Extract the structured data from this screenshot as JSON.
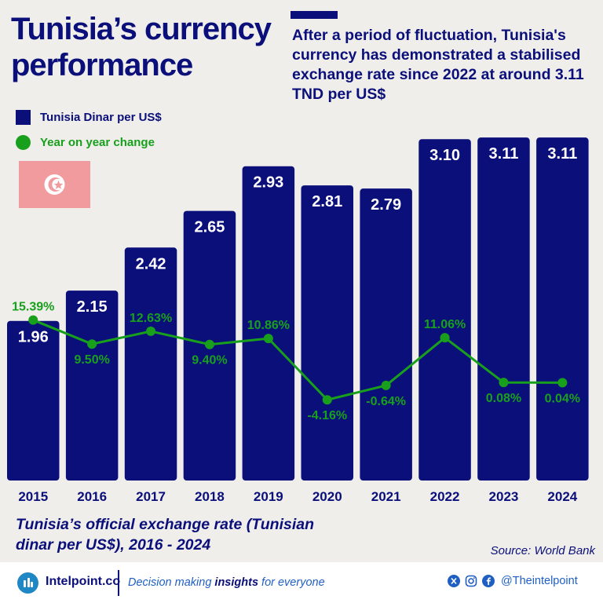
{
  "header": {
    "title": "Tunisia’s currency performance",
    "subtitle": "After a period of fluctuation, Tunisia's currency has demonstrated a stabilised exchange rate since 2022 at around 3.11 TND per US$"
  },
  "legend": {
    "bars_label": "Tunisia Dinar per US$",
    "yoy_label": "Year on year change"
  },
  "colors": {
    "bar": "#0b0f7a",
    "yoy": "#18a01d",
    "background": "#efeeea",
    "flag": "#f19b9e"
  },
  "chart_data": {
    "type": "bar",
    "categories": [
      "2015",
      "2016",
      "2017",
      "2018",
      "2019",
      "2020",
      "2021",
      "2022",
      "2023",
      "2024"
    ],
    "series": [
      {
        "name": "Tunisia Dinar per US$",
        "type": "bar",
        "values": [
          1.96,
          2.15,
          2.42,
          2.65,
          2.93,
          2.81,
          2.79,
          3.1,
          3.11,
          3.11
        ]
      },
      {
        "name": "Year on year change",
        "type": "line",
        "values": [
          15.39,
          9.5,
          12.63,
          9.4,
          10.86,
          -4.16,
          -0.64,
          11.06,
          0.08,
          0.04
        ]
      }
    ],
    "bar_labels": [
      "1.96",
      "2.15",
      "2.42",
      "2.65",
      "2.93",
      "2.81",
      "2.79",
      "3.10",
      "3.11",
      "3.11"
    ],
    "yoy_labels": [
      "15.39%",
      "9.50%",
      "12.63%",
      "9.40%",
      "10.86%",
      "-4.16%",
      "-0.64%",
      "11.06%",
      "0.08%",
      "0.04%"
    ],
    "legend": "top-left",
    "grid": false
  },
  "caption": "Tunisia’s official exchange rate (Tunisian dinar per US$), 2016 - 2024",
  "source": "Source: World Bank",
  "footer": {
    "brand": "Intelpoint.co",
    "tagline_before": "Decision making ",
    "tagline_bold": "insights",
    "tagline_after": " for everyone",
    "handle": "@Theintelpoint",
    "icons": [
      "x-icon",
      "instagram-icon",
      "facebook-icon"
    ]
  }
}
